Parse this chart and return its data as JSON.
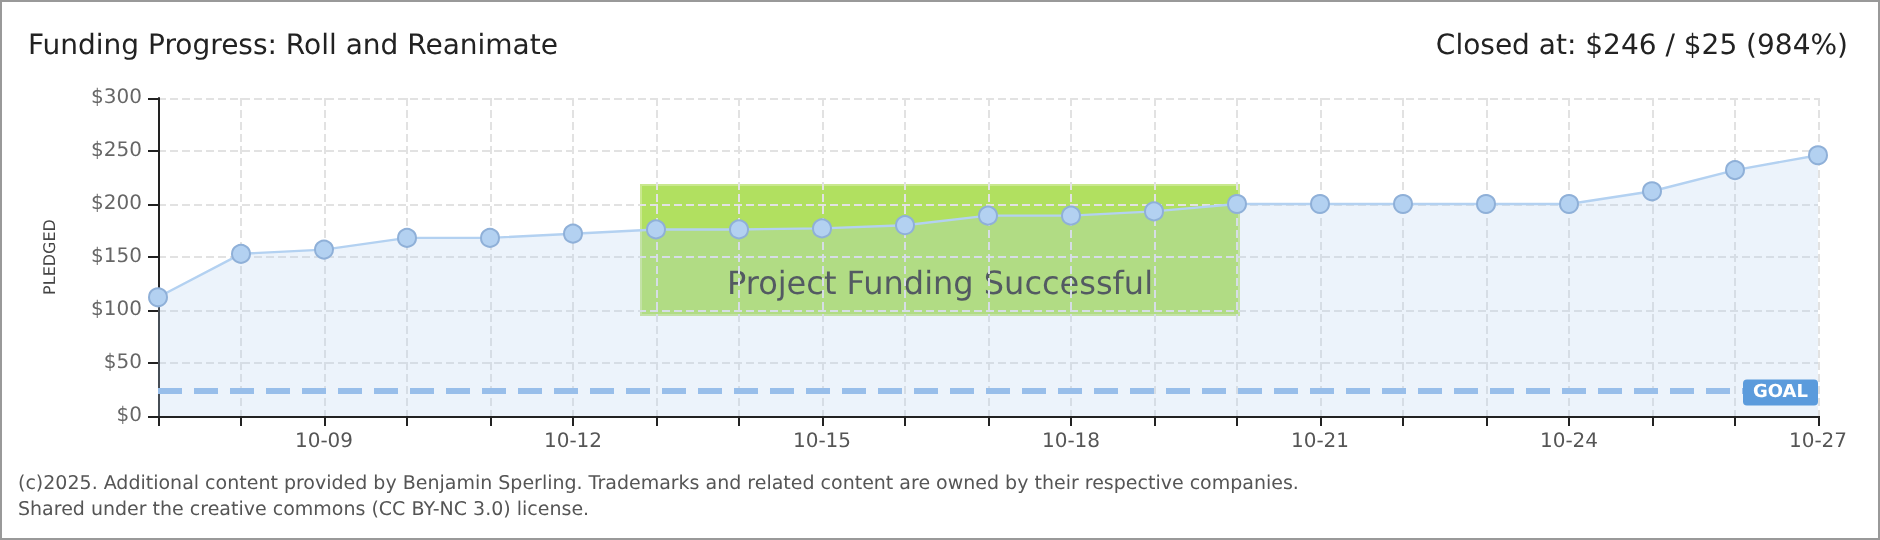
{
  "chart_data": {
    "type": "area",
    "title": "Funding Progress: Roll and Reanimate",
    "subtitle": "Closed at: $246 / $25 (984%)",
    "ylabel": "PLEDGED",
    "annotations": [
      "Project Funding Successful",
      "(c)2025. Additional content provided by Benjamin Sperling. Trademarks and related content are owned by their respective companies.",
      "Shared under the creative commons (CC BY-NC 3.0) license."
    ],
    "categories": [
      null,
      null,
      "10-09",
      null,
      null,
      "10-12",
      null,
      null,
      "10-15",
      null,
      null,
      "10-18",
      null,
      null,
      "10-21",
      null,
      null,
      "10-24",
      null,
      null,
      "10-27"
    ],
    "series": [
      {
        "color": "#b3d1f1",
        "values": [
          112,
          153,
          157,
          168,
          168,
          172,
          176,
          176,
          177,
          180,
          189,
          189,
          193,
          200,
          200,
          200,
          200,
          200,
          212,
          232,
          246
        ]
      }
    ],
    "ylim": [
      0,
      300
    ],
    "yticks": [
      {
        "value": 0,
        "label": "$0"
      },
      {
        "value": 50,
        "label": "$50"
      },
      {
        "value": 100,
        "label": "$100"
      },
      {
        "value": 150,
        "label": "$150"
      },
      {
        "value": 200,
        "label": "$200"
      },
      {
        "value": 250,
        "label": "$250"
      },
      {
        "value": 300,
        "label": "$300"
      }
    ],
    "ref_lines": [
      {
        "axis": "y",
        "value": 25,
        "label": "GOAL",
        "color": "#8fb9e8",
        "line_style": "dashed"
      }
    ],
    "grid": true,
    "marker": "circle",
    "line_style": "solid"
  }
}
